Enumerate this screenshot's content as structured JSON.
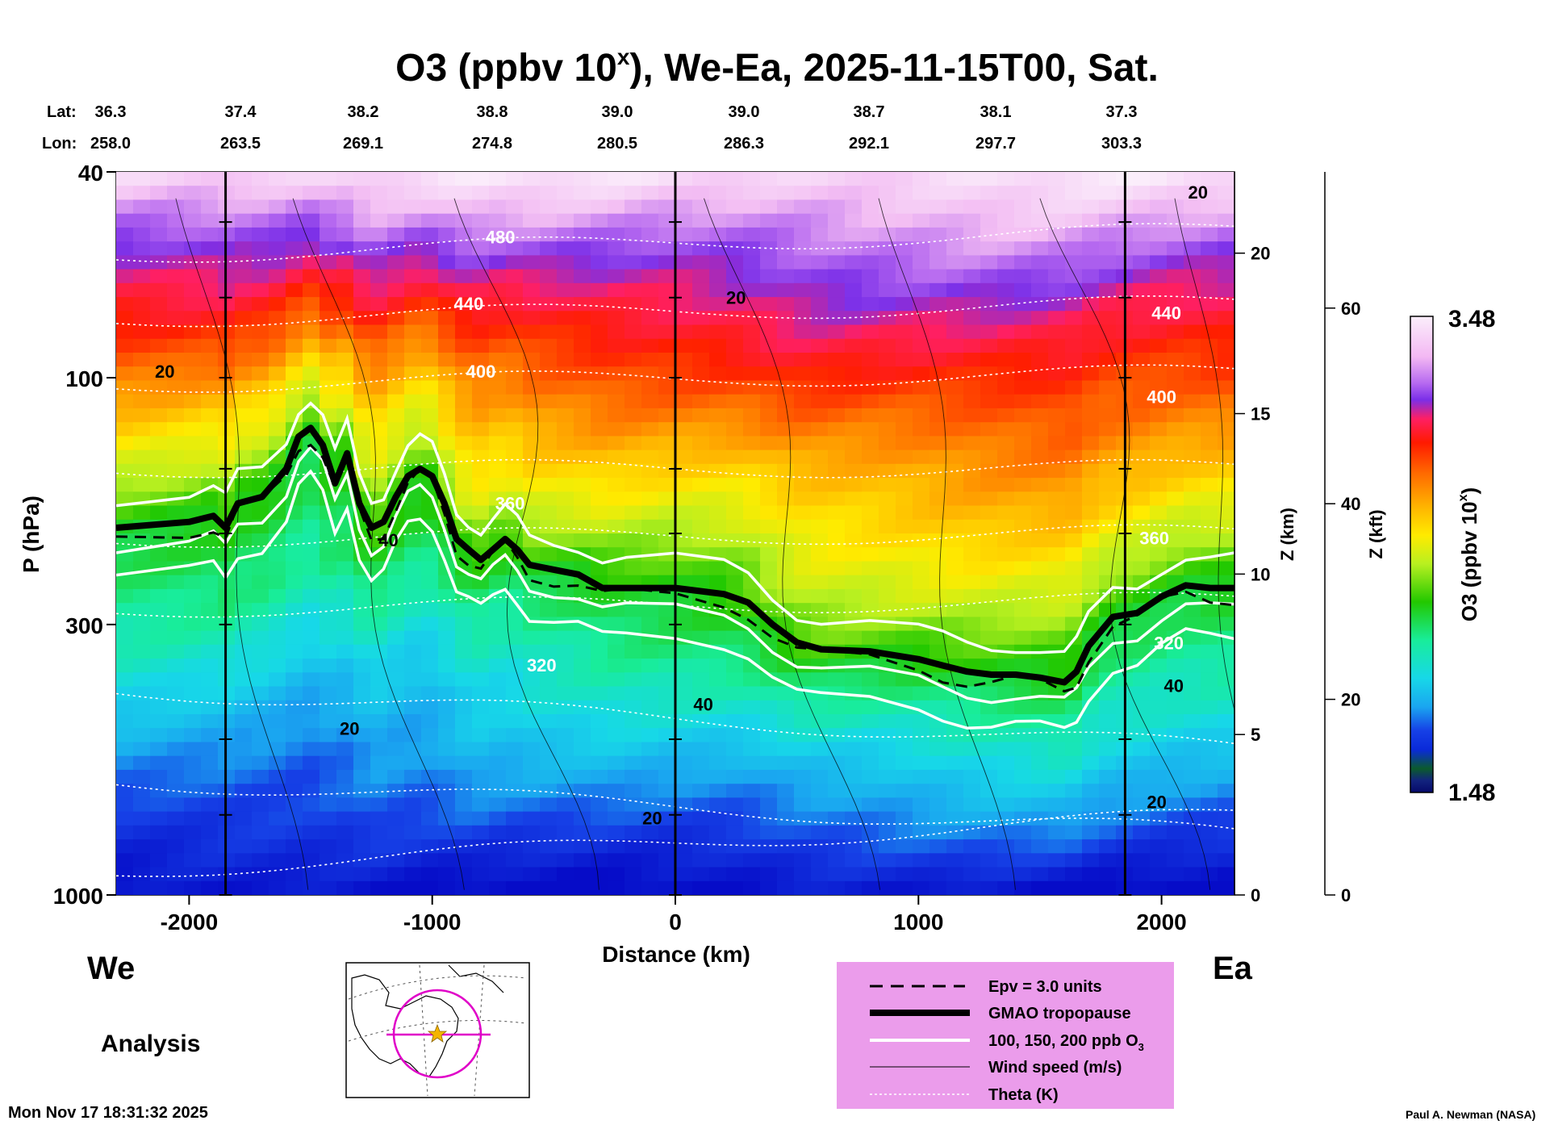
{
  "title": {
    "prefix": "O3 (ppbv 10",
    "superscript": "x",
    "suffix": "), We-Ea, 2025-11-15T00, Sat."
  },
  "header": {
    "lat_label": "Lat:",
    "lon_label": "Lon:",
    "lat": [
      "36.3",
      "37.4",
      "38.2",
      "38.8",
      "39.0",
      "39.0",
      "38.7",
      "38.1",
      "37.3"
    ],
    "lon": [
      "258.0",
      "263.5",
      "269.1",
      "274.8",
      "280.5",
      "286.3",
      "292.1",
      "297.7",
      "303.3"
    ]
  },
  "chart_data": {
    "type": "heatmap",
    "variable": "O3 (ppbv 10^x)",
    "x": {
      "label": "Distance (km)",
      "range": [
        -2300,
        2300
      ],
      "ticks": [
        "-2000",
        "-1000",
        "0",
        "1000",
        "2000"
      ],
      "tick_values": [
        -2000,
        -1000,
        0,
        1000,
        2000
      ]
    },
    "y_left": {
      "label": "P (hPa)",
      "scale": "log",
      "range": [
        1000,
        40
      ],
      "ticks": [
        "40",
        "100",
        "300",
        "1000"
      ],
      "tick_values": [
        40,
        100,
        300,
        1000
      ]
    },
    "y_right_km": {
      "label": "Z (km)",
      "ticks": [
        "0",
        "5",
        "10",
        "15",
        "20"
      ]
    },
    "y_right_kft": {
      "label": "Z (kft)",
      "ticks": [
        "0",
        "20",
        "40",
        "60"
      ]
    },
    "colorbar": {
      "label": "O3 (ppbv 10",
      "label_sup": "x",
      "label_end": ")",
      "max": "3.48",
      "min": "1.48"
    },
    "vertical_lines_km": [
      -1850,
      0,
      1850
    ],
    "tropopause_hpa": [
      [
        -2300,
        195
      ],
      [
        -2000,
        190
      ],
      [
        -1900,
        185
      ],
      [
        -1850,
        195
      ],
      [
        -1800,
        175
      ],
      [
        -1700,
        170
      ],
      [
        -1600,
        150
      ],
      [
        -1550,
        130
      ],
      [
        -1500,
        125
      ],
      [
        -1450,
        135
      ],
      [
        -1400,
        160
      ],
      [
        -1350,
        140
      ],
      [
        -1300,
        175
      ],
      [
        -1250,
        195
      ],
      [
        -1200,
        190
      ],
      [
        -1150,
        170
      ],
      [
        -1100,
        155
      ],
      [
        -1050,
        150
      ],
      [
        -1000,
        155
      ],
      [
        -950,
        175
      ],
      [
        -900,
        205
      ],
      [
        -850,
        215
      ],
      [
        -800,
        225
      ],
      [
        -750,
        215
      ],
      [
        -700,
        205
      ],
      [
        -650,
        215
      ],
      [
        -600,
        230
      ],
      [
        -500,
        235
      ],
      [
        -400,
        240
      ],
      [
        -300,
        255
      ],
      [
        -200,
        255
      ],
      [
        0,
        255
      ],
      [
        200,
        262
      ],
      [
        300,
        272
      ],
      [
        400,
        300
      ],
      [
        500,
        325
      ],
      [
        600,
        335
      ],
      [
        800,
        338
      ],
      [
        1000,
        350
      ],
      [
        1100,
        360
      ],
      [
        1200,
        370
      ],
      [
        1300,
        375
      ],
      [
        1400,
        375
      ],
      [
        1500,
        380
      ],
      [
        1600,
        388
      ],
      [
        1650,
        370
      ],
      [
        1700,
        330
      ],
      [
        1800,
        290
      ],
      [
        1900,
        285
      ],
      [
        2000,
        265
      ],
      [
        2100,
        252
      ],
      [
        2200,
        255
      ],
      [
        2300,
        255
      ]
    ],
    "contour_labels": [
      {
        "text": "480",
        "x": -720,
        "p": 55
      },
      {
        "text": "440",
        "x": -850,
        "p": 74
      },
      {
        "text": "400",
        "x": -800,
        "p": 100
      },
      {
        "text": "360",
        "x": -680,
        "p": 180
      },
      {
        "text": "320",
        "x": -550,
        "p": 370
      },
      {
        "text": "440",
        "x": 2020,
        "p": 77
      },
      {
        "text": "400",
        "x": 2000,
        "p": 112
      },
      {
        "text": "360",
        "x": 1970,
        "p": 210
      },
      {
        "text": "320",
        "x": 2030,
        "p": 335
      },
      {
        "text": "20",
        "x": -2100,
        "p": 100
      },
      {
        "text": "20",
        "x": -1340,
        "p": 490
      },
      {
        "text": "40",
        "x": -1180,
        "p": 212
      },
      {
        "text": "20",
        "x": 250,
        "p": 72
      },
      {
        "text": "40",
        "x": 115,
        "p": 440
      },
      {
        "text": "20",
        "x": -95,
        "p": 730
      },
      {
        "text": "20",
        "x": 2150,
        "p": 45
      },
      {
        "text": "40",
        "x": 2050,
        "p": 405
      },
      {
        "text": "20",
        "x": 1980,
        "p": 680
      }
    ]
  },
  "labels": {
    "west": "We",
    "east": "Ea",
    "analysis": "Analysis",
    "timestamp": "Mon Nov 17 18:31:32 2025",
    "author": "Paul A. Newman (NASA)"
  },
  "legend": {
    "items": [
      {
        "label": "Epv = 3.0 units",
        "style": "dashed"
      },
      {
        "label": "GMAO tropopause",
        "style": "thick"
      },
      {
        "label": "100, 150, 200 ppb O",
        "sub": "3",
        "style": "white"
      },
      {
        "label": "Wind speed (m/s)",
        "style": "thin"
      },
      {
        "label": "Theta (K)",
        "style": "dotted"
      }
    ]
  }
}
